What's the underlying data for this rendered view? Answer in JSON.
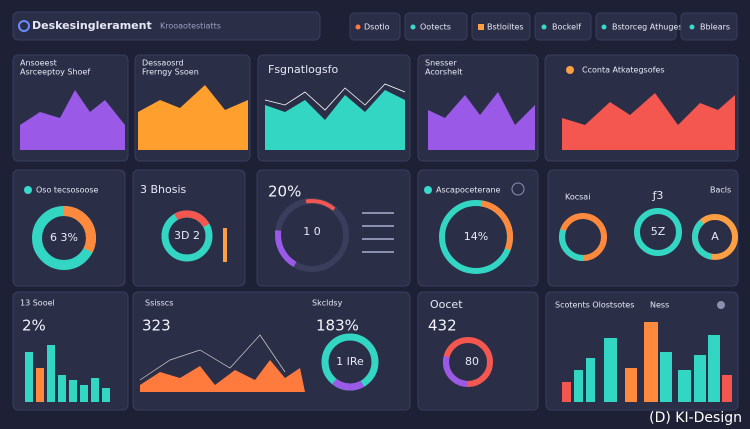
{
  "header": {
    "title": "Deskesinglerament",
    "subtitle": "Krooaotestiatts",
    "buttons": [
      "Dsotlo",
      "Ootects",
      "Bstloiltes",
      "Bockelf",
      "Bstorceg Athugests",
      "Bblears"
    ]
  },
  "row1": [
    {
      "title": "Ansoeest",
      "subtitle": "Asrceeptoy Shoef"
    },
    {
      "title": "Dessaosrd",
      "subtitle": "Frerngy Ssoen"
    },
    {
      "title": "Fsgnatlogsfo"
    },
    {
      "title": "Snesser",
      "subtitle": "Acorshelt"
    },
    {
      "title": "Cconta Atkategsofes"
    }
  ],
  "row2": [
    {
      "title": "Oso tecsosoose",
      "value": "6 3%"
    },
    {
      "title": "3 Bhosis",
      "value": "3D 2"
    },
    {
      "title": "20%",
      "value": "1 0"
    },
    {
      "title": "Ascapoceterane",
      "value": "14%"
    },
    {
      "title": "Kocsai",
      "labels": [
        "ƒ3",
        "5Z",
        "A",
        "Bacls"
      ]
    }
  ],
  "row3": [
    {
      "title": "13 Sooel",
      "value": "2%"
    },
    {
      "title": "Ssisscs",
      "value": "323",
      "extra": "Skcldsy",
      "extra_value": "183%",
      "donut": "1 IRe"
    },
    {
      "title": "Oocet",
      "value": "432",
      "donut": "80"
    },
    {
      "title": "Scotents Olostsotes",
      "extra": "Ness"
    }
  ],
  "watermark": "(D) KI-Design"
}
